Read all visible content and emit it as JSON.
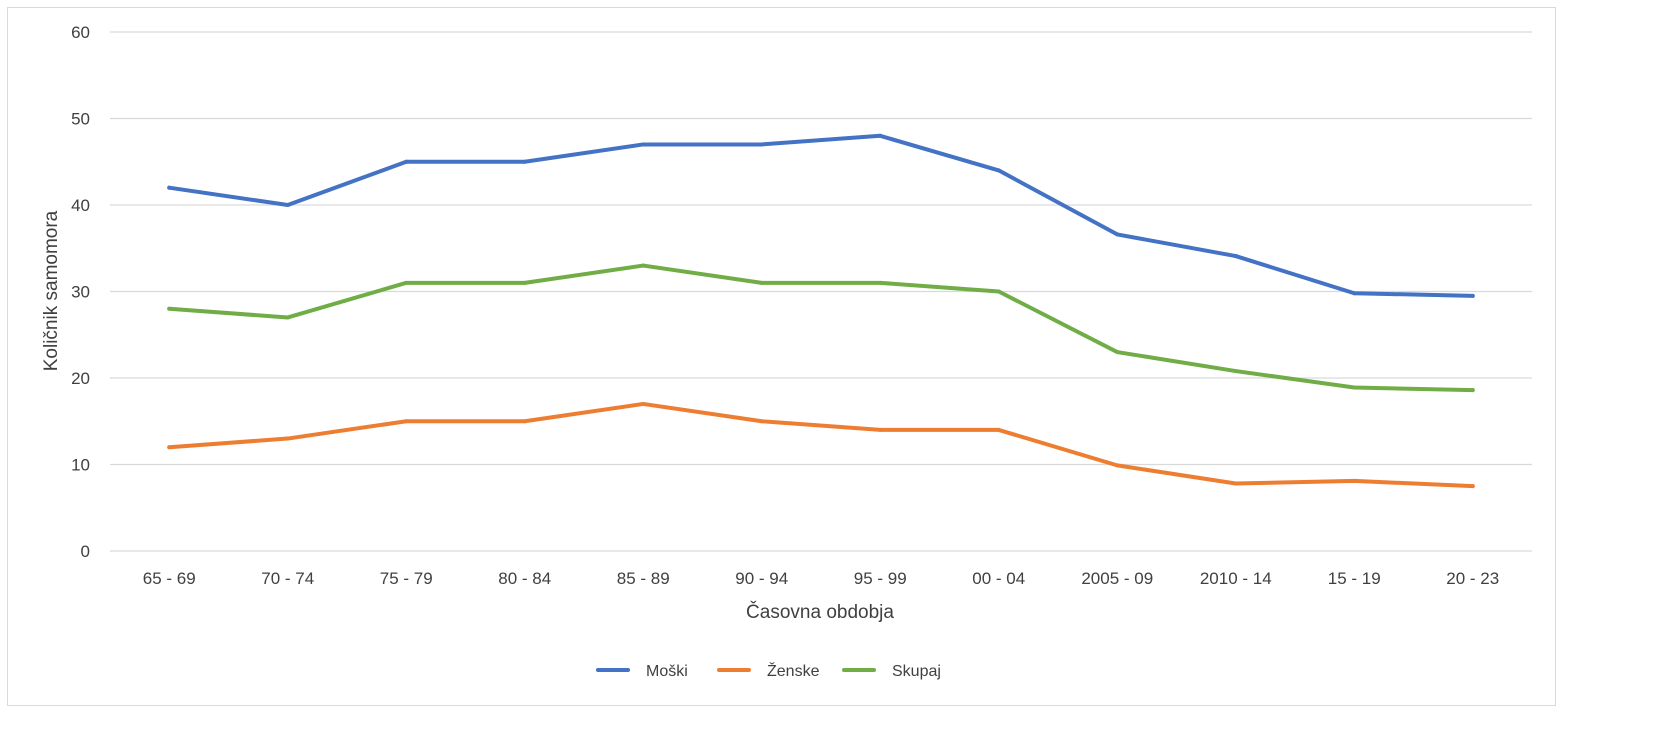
{
  "chart_data": {
    "type": "line",
    "title": "",
    "xlabel": "Časovna obdobja",
    "ylabel": "Količnik samomora",
    "ylim": [
      0,
      60
    ],
    "yticks": [
      0,
      10,
      20,
      30,
      40,
      50,
      60
    ],
    "grid": true,
    "legend_position": "bottom",
    "categories": [
      "65 - 69",
      "70 - 74",
      "75 - 79",
      "80 - 84",
      "85 - 89",
      "90 - 94",
      "95 - 99",
      "00 - 04",
      "2005 - 09",
      "2010 - 14",
      "15 - 19",
      "20 - 23"
    ],
    "series": [
      {
        "name": "Moški",
        "color": "#4472c4",
        "values": [
          42,
          40,
          45,
          45,
          47,
          47,
          48,
          44,
          36.6,
          34.1,
          29.8,
          29.5
        ]
      },
      {
        "name": "Ženske",
        "color": "#ed7d31",
        "values": [
          12,
          13,
          15,
          15,
          17,
          15,
          14,
          14,
          9.9,
          7.8,
          8.1,
          7.5
        ]
      },
      {
        "name": "Skupaj",
        "color": "#70ad47",
        "values": [
          28,
          27,
          31,
          31,
          33,
          31,
          31,
          30,
          23,
          20.8,
          18.9,
          18.6
        ]
      }
    ]
  }
}
